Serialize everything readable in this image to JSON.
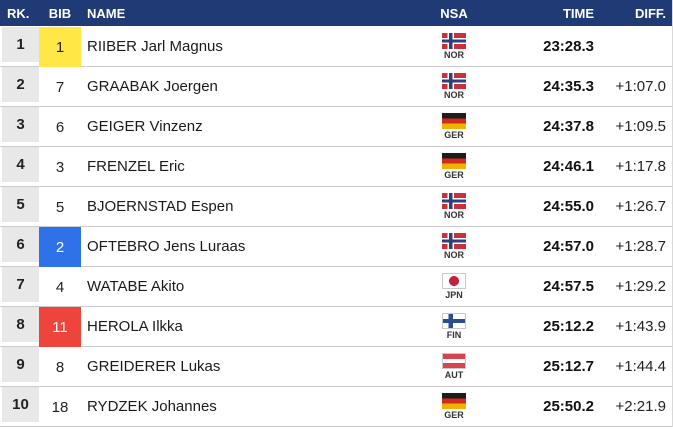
{
  "header": {
    "rk": "RK.",
    "bib": "BIB",
    "name": "NAME",
    "nsa": "NSA",
    "time": "TIME",
    "diff": "DIFF."
  },
  "colors": {
    "header_bg": "#203a76",
    "rank_column_bg": "#e8e8e8",
    "bib_yellow": "#ffe846",
    "bib_blue": "#2f71e8",
    "bib_red": "#ee443c",
    "row_separator": "#cccccc"
  },
  "rows": [
    {
      "rank": "1",
      "bib": "1",
      "bib_color": "yellow",
      "name": "RIIBER Jarl Magnus",
      "nsa": "NOR",
      "time": "23:28.3",
      "diff": ""
    },
    {
      "rank": "2",
      "bib": "7",
      "bib_color": "none",
      "name": "GRAABAK Joergen",
      "nsa": "NOR",
      "time": "24:35.3",
      "diff": "+1:07.0"
    },
    {
      "rank": "3",
      "bib": "6",
      "bib_color": "none",
      "name": "GEIGER Vinzenz",
      "nsa": "GER",
      "time": "24:37.8",
      "diff": "+1:09.5"
    },
    {
      "rank": "4",
      "bib": "3",
      "bib_color": "none",
      "name": "FRENZEL Eric",
      "nsa": "GER",
      "time": "24:46.1",
      "diff": "+1:17.8"
    },
    {
      "rank": "5",
      "bib": "5",
      "bib_color": "none",
      "name": "BJOERNSTAD Espen",
      "nsa": "NOR",
      "time": "24:55.0",
      "diff": "+1:26.7"
    },
    {
      "rank": "6",
      "bib": "2",
      "bib_color": "blue",
      "name": "OFTEBRO Jens Luraas",
      "nsa": "NOR",
      "time": "24:57.0",
      "diff": "+1:28.7"
    },
    {
      "rank": "7",
      "bib": "4",
      "bib_color": "none",
      "name": "WATABE Akito",
      "nsa": "JPN",
      "time": "24:57.5",
      "diff": "+1:29.2"
    },
    {
      "rank": "8",
      "bib": "11",
      "bib_color": "red",
      "name": "HEROLA Ilkka",
      "nsa": "FIN",
      "time": "25:12.2",
      "diff": "+1:43.9"
    },
    {
      "rank": "9",
      "bib": "8",
      "bib_color": "none",
      "name": "GREIDERER Lukas",
      "nsa": "AUT",
      "time": "25:12.7",
      "diff": "+1:44.4"
    },
    {
      "rank": "10",
      "bib": "18",
      "bib_color": "none",
      "name": "RYDZEK Johannes",
      "nsa": "GER",
      "time": "25:50.2",
      "diff": "+2:21.9"
    }
  ]
}
